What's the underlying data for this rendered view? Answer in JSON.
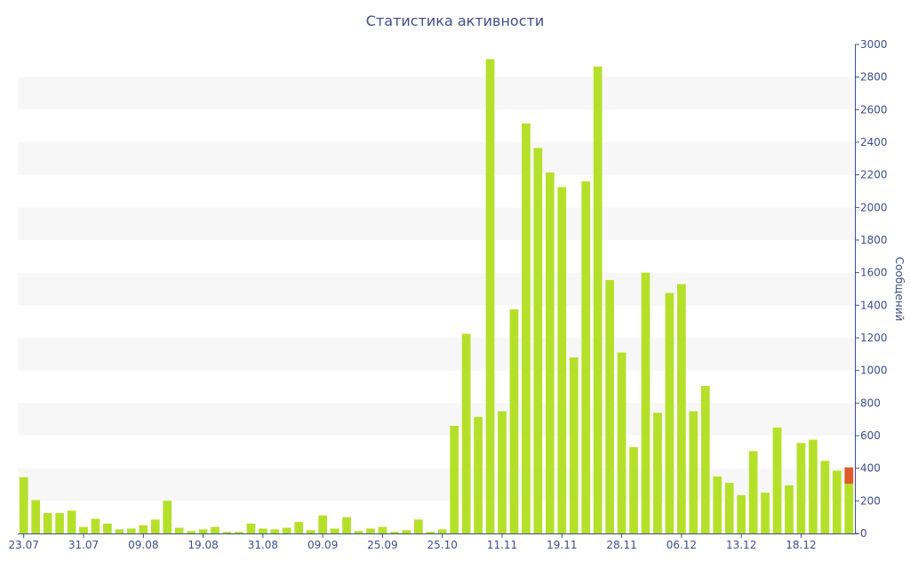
{
  "chart_data": {
    "type": "bar",
    "title": "Статистика активности",
    "ylabel": "Сообщений",
    "ylim": [
      0,
      3000
    ],
    "y_ticks": [
      0,
      200,
      400,
      600,
      800,
      1000,
      1200,
      1400,
      1600,
      1800,
      2000,
      2200,
      2400,
      2600,
      2800,
      3000
    ],
    "x_tick_labels": [
      {
        "index": 0,
        "label": "23.07"
      },
      {
        "index": 5,
        "label": "31.07"
      },
      {
        "index": 10,
        "label": "09.08"
      },
      {
        "index": 15,
        "label": "19.08"
      },
      {
        "index": 20,
        "label": "31.08"
      },
      {
        "index": 25,
        "label": "09.09"
      },
      {
        "index": 30,
        "label": "25.09"
      },
      {
        "index": 35,
        "label": "25.10"
      },
      {
        "index": 40,
        "label": "11.11"
      },
      {
        "index": 45,
        "label": "19.11"
      },
      {
        "index": 50,
        "label": "28.11"
      },
      {
        "index": 55,
        "label": "06.12"
      },
      {
        "index": 60,
        "label": "13.12"
      },
      {
        "index": 65,
        "label": "18.12"
      }
    ],
    "values": [
      345,
      205,
      125,
      125,
      140,
      40,
      90,
      60,
      25,
      30,
      50,
      85,
      200,
      35,
      15,
      25,
      40,
      10,
      10,
      60,
      30,
      25,
      35,
      70,
      20,
      110,
      30,
      100,
      15,
      30,
      40,
      10,
      20,
      85,
      10,
      25,
      660,
      1225,
      715,
      2910,
      750,
      1375,
      2515,
      2365,
      2215,
      2125,
      1080,
      2160,
      2865,
      1555,
      1110,
      530,
      1600,
      740,
      1475,
      1530,
      750,
      905,
      350,
      310,
      235,
      505,
      250,
      650,
      295,
      555,
      575,
      445,
      385,
      405
    ],
    "highlight": {
      "index": 69,
      "value": 405,
      "base": 305
    },
    "colors": {
      "bar": "#b5e02a",
      "highlight": "#e05a2b",
      "axis": "#3e4f8a",
      "band": "#f7f7f7"
    },
    "grid": "alternating horizontal bands",
    "legend": "none"
  }
}
